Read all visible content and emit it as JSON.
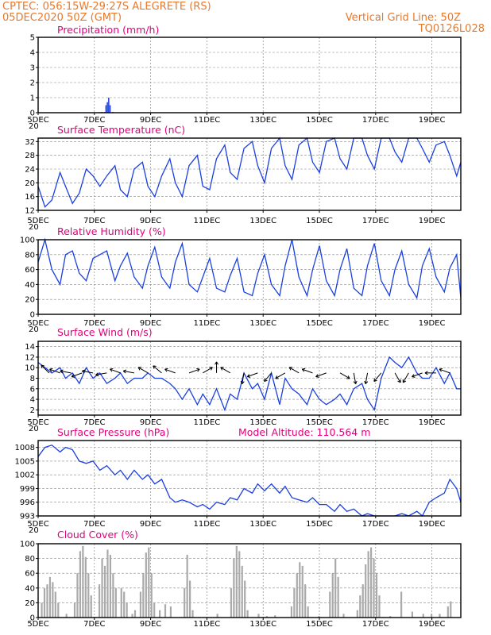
{
  "header": {
    "line1": "CPTEC:   056:15W-29:27S   ALEGRETE (RS)",
    "line2": "05DEC2020 50Z (GMT)",
    "right1": "Vertical Grid Line: 50Z",
    "right2": "TQ0126L028"
  },
  "colors": {
    "header": "#e8782a",
    "title": "#e0007a",
    "line": "#1a3fe0",
    "cloud": "#aaaaaa"
  },
  "x_ticks": [
    "5DEC",
    "7DEC",
    "9DEC",
    "11DEC",
    "13DEC",
    "15DEC",
    "17DEC",
    "19DEC"
  ],
  "x_stub": "20",
  "chart_data": [
    {
      "type": "bar",
      "title": "Precipitation (mm/h)",
      "ylim": [
        0,
        5
      ],
      "yticks": [
        0,
        1,
        2,
        3,
        4,
        5
      ],
      "x_range": [
        0,
        15.4
      ],
      "series": [
        {
          "color": "#1a3fe0",
          "points": [
            [
              0.3,
              0.03
            ],
            [
              0.8,
              0.03
            ],
            [
              1.3,
              0.03
            ],
            [
              1.8,
              0.03
            ],
            [
              2.2,
              0.04
            ],
            [
              2.3,
              0.05
            ],
            [
              2.4,
              0.05
            ],
            [
              2.45,
              0.5
            ],
            [
              2.5,
              0.7
            ],
            [
              2.55,
              1.0
            ],
            [
              2.6,
              0.5
            ],
            [
              2.7,
              0.05
            ],
            [
              3.0,
              0.03
            ],
            [
              3.5,
              0.03
            ],
            [
              4.2,
              0.02
            ],
            [
              5.0,
              0.02
            ],
            [
              6.1,
              0.02
            ],
            [
              7.0,
              0.02
            ],
            [
              8.0,
              0.02
            ],
            [
              9.0,
              0.02
            ],
            [
              10.0,
              0.02
            ],
            [
              11.0,
              0.02
            ],
            [
              12.0,
              0.02
            ],
            [
              13.0,
              0.02
            ],
            [
              14.0,
              0.02
            ],
            [
              15.0,
              0.02
            ]
          ]
        }
      ]
    },
    {
      "type": "line",
      "title": "Surface Temperature (nC)",
      "ylim": [
        12,
        33
      ],
      "yticks": [
        12,
        16,
        20,
        24,
        28,
        32
      ],
      "x_range": [
        0,
        15.4
      ],
      "x": [
        0,
        0.25,
        0.5,
        0.8,
        1.0,
        1.25,
        1.5,
        1.75,
        2.0,
        2.25,
        2.5,
        2.8,
        3.0,
        3.25,
        3.5,
        3.8,
        4.0,
        4.25,
        4.5,
        4.8,
        5.0,
        5.25,
        5.5,
        5.8,
        6.0,
        6.25,
        6.5,
        6.8,
        7.0,
        7.25,
        7.5,
        7.8,
        8.0,
        8.25,
        8.5,
        8.8,
        9.0,
        9.25,
        9.5,
        9.8,
        10.0,
        10.25,
        10.5,
        10.8,
        11.0,
        11.25,
        11.5,
        11.8,
        12.0,
        12.25,
        12.5,
        12.8,
        13.0,
        13.25,
        13.5,
        13.8,
        14.0,
        14.25,
        14.5,
        14.8,
        15.0,
        15.25,
        15.4
      ],
      "series": [
        {
          "name": "",
          "values": [
            19,
            13,
            15,
            23,
            19,
            14,
            17,
            24,
            22,
            19,
            22,
            25,
            18,
            16,
            24,
            26,
            19,
            16,
            22,
            27,
            20,
            16,
            25,
            28,
            19,
            18,
            27,
            31,
            23,
            21,
            30,
            32,
            25,
            20,
            30,
            33,
            25,
            21,
            31,
            33,
            26,
            23,
            32,
            34,
            27,
            24,
            33,
            35,
            28,
            24,
            33,
            35,
            29,
            26,
            34,
            35,
            30,
            26,
            31,
            32,
            28,
            22,
            26
          ]
        }
      ]
    },
    {
      "type": "line",
      "title": "Relative Humidity (%)",
      "ylim": [
        0,
        100
      ],
      "yticks": [
        0,
        20,
        40,
        60,
        80,
        100
      ],
      "x_range": [
        0,
        15.4
      ],
      "x": [
        0,
        0.25,
        0.5,
        0.8,
        1.0,
        1.25,
        1.5,
        1.75,
        2.0,
        2.25,
        2.5,
        2.8,
        3.0,
        3.25,
        3.5,
        3.8,
        4.0,
        4.25,
        4.5,
        4.8,
        5.0,
        5.25,
        5.5,
        5.8,
        6.0,
        6.25,
        6.5,
        6.8,
        7.0,
        7.25,
        7.5,
        7.8,
        8.0,
        8.25,
        8.5,
        8.8,
        9.0,
        9.25,
        9.5,
        9.8,
        10.0,
        10.25,
        10.5,
        10.8,
        11.0,
        11.25,
        11.5,
        11.8,
        12.0,
        12.25,
        12.5,
        12.8,
        13.0,
        13.25,
        13.5,
        13.8,
        14.0,
        14.25,
        14.5,
        14.8,
        15.0,
        15.25,
        15.4
      ],
      "series": [
        {
          "name": "",
          "values": [
            70,
            100,
            60,
            40,
            80,
            85,
            55,
            45,
            75,
            80,
            85,
            45,
            65,
            82,
            50,
            35,
            65,
            90,
            50,
            35,
            70,
            95,
            40,
            30,
            50,
            75,
            35,
            30,
            52,
            75,
            30,
            25,
            55,
            80,
            40,
            25,
            65,
            100,
            50,
            25,
            60,
            92,
            45,
            25,
            60,
            88,
            35,
            25,
            65,
            95,
            45,
            25,
            60,
            85,
            40,
            22,
            65,
            88,
            50,
            30,
            62,
            80,
            22
          ]
        }
      ]
    },
    {
      "type": "line",
      "title": "Surface Wind (m/s)",
      "ylim": [
        1,
        15
      ],
      "yticks": [
        2,
        4,
        6,
        8,
        10,
        12,
        14
      ],
      "x_range": [
        0,
        15.4
      ],
      "x": [
        0,
        0.25,
        0.5,
        0.8,
        1.0,
        1.25,
        1.5,
        1.75,
        2.0,
        2.25,
        2.5,
        2.8,
        3.0,
        3.25,
        3.5,
        3.8,
        4.0,
        4.25,
        4.5,
        4.8,
        5.0,
        5.25,
        5.5,
        5.8,
        6.0,
        6.25,
        6.5,
        6.8,
        7.0,
        7.25,
        7.5,
        7.8,
        8.0,
        8.25,
        8.5,
        8.8,
        9.0,
        9.25,
        9.5,
        9.8,
        10.0,
        10.25,
        10.5,
        10.8,
        11.0,
        11.25,
        11.5,
        11.8,
        12.0,
        12.25,
        12.5,
        12.8,
        13.0,
        13.25,
        13.5,
        13.8,
        14.0,
        14.25,
        14.5,
        14.8,
        15.0,
        15.25,
        15.4
      ],
      "series": [
        {
          "name": "",
          "values": [
            11,
            10,
            9,
            10,
            8,
            9,
            7,
            10,
            8,
            9,
            7,
            8,
            9,
            7,
            8,
            8,
            9,
            8,
            8,
            7,
            6,
            4,
            6,
            3,
            5,
            3,
            6,
            2,
            5,
            4,
            9,
            6,
            7,
            4,
            9,
            3,
            8,
            6,
            5,
            3,
            6,
            4,
            3,
            4,
            5,
            3,
            6,
            7,
            4,
            2,
            8,
            12,
            11,
            10,
            12,
            9,
            8,
            8,
            10,
            7,
            9,
            6,
            6
          ]
        }
      ],
      "arrows": [
        {
          "x": 0.4,
          "dir": 135
        },
        {
          "x": 0.8,
          "dir": 160
        },
        {
          "x": 1.2,
          "dir": 170
        },
        {
          "x": 1.6,
          "dir": 200
        },
        {
          "x": 2.0,
          "dir": 170
        },
        {
          "x": 2.5,
          "dir": 190
        },
        {
          "x": 3.0,
          "dir": 160
        },
        {
          "x": 3.5,
          "dir": 170
        },
        {
          "x": 4.0,
          "dir": 150
        },
        {
          "x": 4.5,
          "dir": 140
        },
        {
          "x": 5.0,
          "dir": 160
        },
        {
          "x": 5.5,
          "dir": 20
        },
        {
          "x": 6.0,
          "dir": 30
        },
        {
          "x": 6.5,
          "dir": 90
        },
        {
          "x": 7.0,
          "dir": 150
        },
        {
          "x": 7.5,
          "dir": 260
        },
        {
          "x": 8.0,
          "dir": 200
        },
        {
          "x": 8.5,
          "dir": 230
        },
        {
          "x": 9.0,
          "dir": 210
        },
        {
          "x": 9.5,
          "dir": 150
        },
        {
          "x": 10.0,
          "dir": 160
        },
        {
          "x": 10.5,
          "dir": 200
        },
        {
          "x": 11.0,
          "dir": 330
        },
        {
          "x": 11.5,
          "dir": 280
        },
        {
          "x": 12.0,
          "dir": 260
        },
        {
          "x": 12.5,
          "dir": 230
        },
        {
          "x": 13.0,
          "dir": 300
        },
        {
          "x": 13.5,
          "dir": 240
        },
        {
          "x": 14.0,
          "dir": 200
        },
        {
          "x": 14.5,
          "dir": 180
        },
        {
          "x": 15.0,
          "dir": 160
        }
      ]
    },
    {
      "type": "line",
      "title": "Surface Pressure (hPa)",
      "subtitle": "Model Altitude: 110.564  m",
      "ylim": [
        993,
        1009.5
      ],
      "yticks": [
        993,
        996,
        999,
        1002,
        1005,
        1008
      ],
      "x_range": [
        0,
        15.4
      ],
      "x": [
        0,
        0.25,
        0.5,
        0.8,
        1.0,
        1.25,
        1.5,
        1.75,
        2.0,
        2.25,
        2.5,
        2.8,
        3.0,
        3.25,
        3.5,
        3.8,
        4.0,
        4.25,
        4.5,
        4.8,
        5.0,
        5.25,
        5.5,
        5.8,
        6.0,
        6.25,
        6.5,
        6.8,
        7.0,
        7.25,
        7.5,
        7.8,
        8.0,
        8.25,
        8.5,
        8.8,
        9.0,
        9.25,
        9.5,
        9.8,
        10.0,
        10.25,
        10.5,
        10.8,
        11.0,
        11.25,
        11.5,
        11.8,
        12.0,
        12.25,
        12.5,
        12.8,
        13.0,
        13.25,
        13.5,
        13.8,
        14.0,
        14.25,
        14.5,
        14.8,
        15.0,
        15.25,
        15.4
      ],
      "series": [
        {
          "name": "",
          "values": [
            1006,
            1008,
            1008.5,
            1007,
            1008,
            1007.5,
            1005,
            1004.5,
            1005,
            1003,
            1004,
            1002,
            1003,
            1001,
            1003,
            1001,
            1002,
            1000,
            1001,
            997,
            996,
            996.5,
            996,
            995,
            995.5,
            994.5,
            996,
            995.5,
            997,
            996.5,
            999,
            998,
            1000,
            998.5,
            1000,
            998,
            999.5,
            997,
            996.5,
            996,
            997,
            995.5,
            995.5,
            994,
            995.5,
            994,
            994.5,
            993,
            993.5,
            992,
            991,
            990,
            992.5,
            993.5,
            993,
            994,
            993,
            996,
            997,
            998,
            1001,
            999,
            996
          ]
        }
      ]
    },
    {
      "type": "bar",
      "title": "Cloud Cover (%)",
      "ylim": [
        0,
        100
      ],
      "yticks": [
        0,
        20,
        40,
        60,
        80,
        100
      ],
      "x_range": [
        0,
        15.4
      ],
      "series": [
        {
          "color": "#aaaaaa",
          "points": [
            [
              0.1,
              20
            ],
            [
              0.2,
              40
            ],
            [
              0.3,
              45
            ],
            [
              0.4,
              55
            ],
            [
              0.5,
              48
            ],
            [
              0.6,
              35
            ],
            [
              0.7,
              20
            ],
            [
              1.0,
              5
            ],
            [
              1.3,
              20
            ],
            [
              1.4,
              60
            ],
            [
              1.5,
              90
            ],
            [
              1.6,
              97
            ],
            [
              1.7,
              82
            ],
            [
              1.8,
              60
            ],
            [
              1.9,
              30
            ],
            [
              2.2,
              45
            ],
            [
              2.3,
              80
            ],
            [
              2.4,
              70
            ],
            [
              2.5,
              92
            ],
            [
              2.6,
              85
            ],
            [
              2.7,
              60
            ],
            [
              2.8,
              40
            ],
            [
              3.0,
              40
            ],
            [
              3.1,
              35
            ],
            [
              3.2,
              20
            ],
            [
              3.4,
              5
            ],
            [
              3.5,
              10
            ],
            [
              3.7,
              35
            ],
            [
              3.8,
              60
            ],
            [
              3.9,
              88
            ],
            [
              4.0,
              95
            ],
            [
              4.1,
              60
            ],
            [
              4.2,
              20
            ],
            [
              4.4,
              10
            ],
            [
              4.6,
              18
            ],
            [
              4.8,
              15
            ],
            [
              5.3,
              40
            ],
            [
              5.4,
              85
            ],
            [
              5.5,
              50
            ],
            [
              5.6,
              10
            ],
            [
              6.5,
              5
            ],
            [
              7.0,
              40
            ],
            [
              7.1,
              80
            ],
            [
              7.2,
              97
            ],
            [
              7.3,
              90
            ],
            [
              7.4,
              70
            ],
            [
              7.5,
              50
            ],
            [
              7.6,
              10
            ],
            [
              8.0,
              5
            ],
            [
              8.3,
              2
            ],
            [
              8.6,
              3
            ],
            [
              9.2,
              15
            ],
            [
              9.3,
              40
            ],
            [
              9.4,
              60
            ],
            [
              9.5,
              75
            ],
            [
              9.6,
              70
            ],
            [
              9.7,
              45
            ],
            [
              9.8,
              15
            ],
            [
              10.2,
              2
            ],
            [
              10.6,
              35
            ],
            [
              10.7,
              60
            ],
            [
              10.8,
              80
            ],
            [
              10.9,
              55
            ],
            [
              11.1,
              5
            ],
            [
              11.6,
              10
            ],
            [
              11.7,
              30
            ],
            [
              11.8,
              45
            ],
            [
              11.9,
              72
            ],
            [
              12.0,
              90
            ],
            [
              12.1,
              95
            ],
            [
              12.2,
              80
            ],
            [
              12.3,
              60
            ],
            [
              12.4,
              30
            ],
            [
              12.8,
              2
            ],
            [
              13.2,
              35
            ],
            [
              13.6,
              8
            ],
            [
              14.0,
              5
            ],
            [
              14.3,
              5
            ],
            [
              14.6,
              5
            ],
            [
              14.9,
              15
            ],
            [
              15.0,
              22
            ]
          ]
        }
      ]
    }
  ]
}
